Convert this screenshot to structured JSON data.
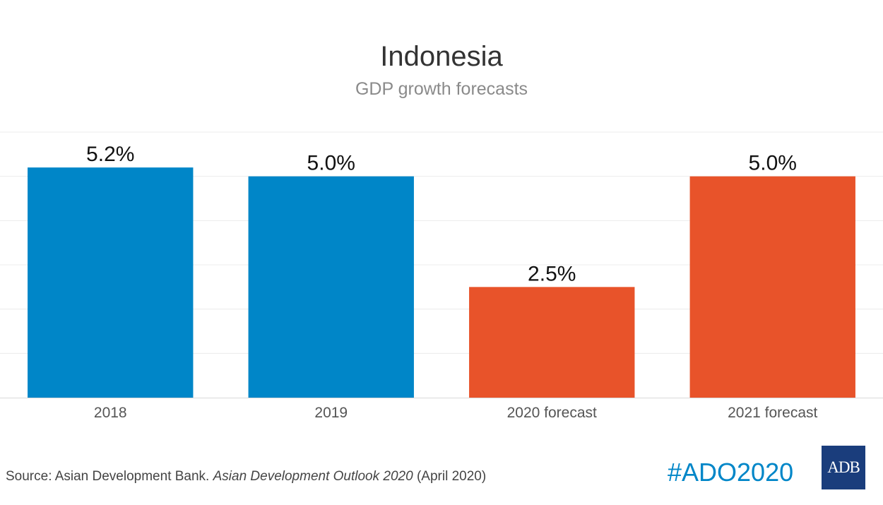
{
  "header": {
    "title": "Indonesia",
    "subtitle": "GDP growth forecasts"
  },
  "chart_data": {
    "type": "bar",
    "title": "Indonesia",
    "subtitle": "GDP growth forecasts",
    "categories": [
      "2018",
      "2019",
      "2020 forecast",
      "2021 forecast"
    ],
    "values": [
      5.2,
      5.0,
      2.5,
      5.0
    ],
    "data_labels": [
      "5.2%",
      "5.0%",
      "2.5%",
      "5.0%"
    ],
    "bar_colors": [
      "#0086c8",
      "#0086c8",
      "#e8532a",
      "#e8532a"
    ],
    "ylim": [
      0,
      6
    ],
    "grid": true,
    "xlabel": "",
    "ylabel": ""
  },
  "footer": {
    "source_prefix": "Source: Asian Development Bank. ",
    "source_title": "Asian Development Outlook 2020",
    "source_suffix": " (April 2020)",
    "hashtag": "#ADO2020",
    "logo_text": "ADB"
  },
  "colors": {
    "accent_blue": "#0086c8",
    "accent_orange": "#e8532a",
    "logo_bg": "#1a3d7c",
    "grid": "#ececec"
  }
}
